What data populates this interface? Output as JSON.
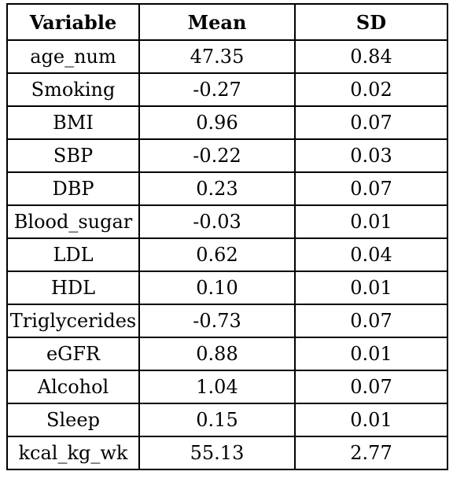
{
  "table": {
    "headers": [
      "Variable",
      "Mean",
      "SD"
    ],
    "rows": [
      [
        "age_num",
        "47.35",
        "0.84"
      ],
      [
        "Smoking",
        "-0.27",
        "0.02"
      ],
      [
        "BMI",
        "0.96",
        "0.07"
      ],
      [
        "SBP",
        "-0.22",
        "0.03"
      ],
      [
        "DBP",
        "0.23",
        "0.07"
      ],
      [
        "Blood_sugar",
        "-0.03",
        "0.01"
      ],
      [
        "LDL",
        "0.62",
        "0.04"
      ],
      [
        "HDL",
        "0.10",
        "0.01"
      ],
      [
        "Triglycerides",
        "-0.73",
        "0.07"
      ],
      [
        "eGFR",
        "0.88",
        "0.01"
      ],
      [
        "Alcohol",
        "1.04",
        "0.07"
      ],
      [
        "Sleep",
        "0.15",
        "0.01"
      ],
      [
        "kcal_kg_wk",
        "55.13",
        "2.77"
      ]
    ]
  }
}
